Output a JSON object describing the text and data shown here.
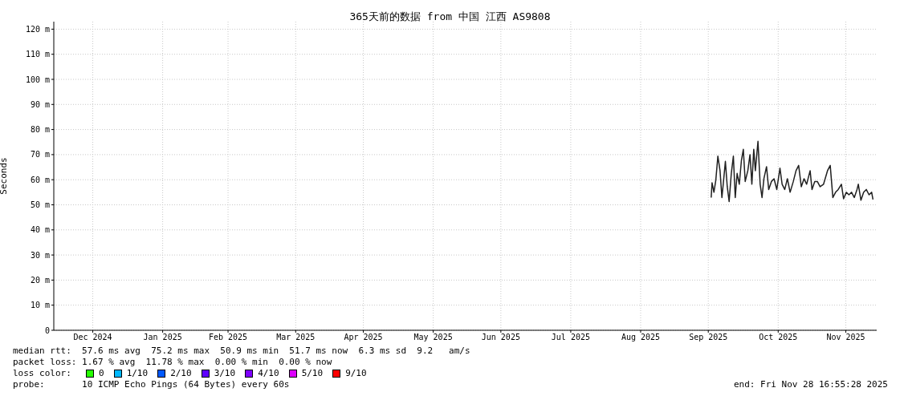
{
  "chart_data": {
    "type": "line",
    "title": "365天前的数据 from 中国 江西 AS9808",
    "ylabel": "Seconds",
    "legend_title": "loss color:",
    "legend": "bottom left",
    "grid": true,
    "xlim": [
      "2024-11-28T16:55",
      "2025-11-28T16:55"
    ],
    "xticks": [
      {
        "value": "2024-12-16",
        "label": "Dec 2024"
      },
      {
        "value": "2025-01-16",
        "label": "Jan 2025"
      },
      {
        "value": "2025-02-14",
        "label": "Feb 2025"
      },
      {
        "value": "2025-03-16",
        "label": "Mar 2025"
      },
      {
        "value": "2025-04-15",
        "label": "Apr 2025"
      },
      {
        "value": "2025-05-16",
        "label": "May 2025"
      },
      {
        "value": "2025-06-15",
        "label": "Jun 2025"
      },
      {
        "value": "2025-07-16",
        "label": "Jul 2025"
      },
      {
        "value": "2025-08-16",
        "label": "Aug 2025"
      },
      {
        "value": "2025-09-15",
        "label": "Sep 2025"
      },
      {
        "value": "2025-10-16",
        "label": "Oct 2025"
      },
      {
        "value": "2025-11-15",
        "label": "Nov 2025"
      }
    ],
    "ylim": [
      0,
      123
    ],
    "yticks": [
      0,
      {
        "value": 10,
        "label": "10 m"
      },
      {
        "value": 20,
        "label": "20 m"
      },
      {
        "value": 30,
        "label": "30 m"
      },
      {
        "value": 40,
        "label": "40 m"
      },
      {
        "value": 50,
        "label": "50 m"
      },
      {
        "value": 60,
        "label": "60 m"
      },
      {
        "value": 70,
        "label": "70 m"
      },
      {
        "value": 80,
        "label": "80 m"
      },
      {
        "value": 90,
        "label": "90 m"
      },
      {
        "value": 100,
        "label": "100 m"
      },
      {
        "value": 110,
        "label": "110 m"
      },
      {
        "value": 120,
        "label": "120 m"
      }
    ],
    "annotations": [
      "median rtt:  57.6 ms avg  75.2 ms max  50.9 ms min  51.7 ms now  6.3 ms sd  9.2   am/s",
      "packet loss: 1.67 % avg  11.78 % max  0.00 % min  0.00 % now",
      "probe:       10 ICMP Echo Pings (64 Bytes) every 60s",
      "end: Fri Nov 28 16:55:28 2025"
    ],
    "series": [
      {
        "color": "#202020",
        "x": [
          "2025-09-16T07:00",
          "2025-09-16T16:00",
          "2025-09-17T12:00",
          "2025-09-18T08:00",
          "2025-09-19T06:00",
          "2025-09-20T05:00",
          "2025-09-21T01:00",
          "2025-09-21T15:00",
          "2025-09-22T14:00",
          "2025-09-23T10:00",
          "2025-09-24T06:00",
          "2025-09-25T05:00",
          "2025-09-26T03:00",
          "2025-09-26T23:00",
          "2025-09-27T19:00",
          "2025-09-28T18:00",
          "2025-09-29T17:00",
          "2025-09-30T13:00",
          "2025-10-01T09:00",
          "2025-10-02T13:00",
          "2025-10-03T12:00",
          "2025-10-04T08:00",
          "2025-10-05T04:00",
          "2025-10-05T21:00",
          "2025-10-07T01:00",
          "2025-10-08T00:00",
          "2025-10-08T20:00",
          "2025-10-09T16:00",
          "2025-10-10T20:00",
          "2025-10-11T19:00",
          "2025-10-13T00:00",
          "2025-10-14T04:00",
          "2025-10-15T09:00",
          "2025-10-16T19:00",
          "2025-10-17T18:00",
          "2025-10-18T22:00",
          "2025-10-20T02:00",
          "2025-10-21T07:00",
          "2025-10-22T17:00",
          "2025-10-23T22:00",
          "2025-10-25T02:00",
          "2025-10-26T06:00",
          "2025-10-27T11:00",
          "2025-10-28T15:00",
          "2025-10-30T04:00",
          "2025-10-31T00:00",
          "2025-11-01T05:00",
          "2025-11-02T09:00",
          "2025-11-03T14:00",
          "2025-11-05T03:00",
          "2025-11-06T21:00",
          "2025-11-08T02:00",
          "2025-11-09T06:00",
          "2025-11-10T11:00",
          "2025-11-11T15:00",
          "2025-11-13T01:00",
          "2025-11-14T00:00",
          "2025-11-15T05:00",
          "2025-11-16T09:00",
          "2025-11-17T13:00",
          "2025-11-18T18:00",
          "2025-11-19T23:00",
          "2025-11-20T13:00",
          "2025-11-21T17:00",
          "2025-11-22T22:00",
          "2025-11-24T02:00",
          "2025-11-25T07:00",
          "2025-11-26T11:00",
          "2025-11-27T01:00"
        ],
        "values": [
          52.9,
          58.8,
          55.0,
          59.8,
          69.4,
          63.6,
          52.9,
          58.2,
          67.3,
          57.2,
          51.3,
          62.5,
          69.4,
          52.9,
          62.5,
          58.2,
          67.8,
          72.1,
          59.3,
          63.6,
          70.0,
          58.2,
          72.1,
          63.6,
          75.3,
          58.2,
          52.9,
          60.4,
          65.2,
          56.1,
          59.3,
          60.4,
          56.1,
          64.6,
          58.2,
          56.1,
          60.4,
          55.0,
          59.3,
          63.6,
          65.7,
          57.2,
          60.4,
          58.2,
          63.6,
          56.1,
          59.3,
          59.3,
          57.2,
          58.2,
          63.6,
          65.7,
          52.9,
          55.0,
          56.1,
          58.2,
          52.4,
          55.0,
          54.0,
          55.0,
          52.9,
          56.1,
          58.2,
          51.8,
          55.0,
          56.1,
          54.0,
          55.0,
          52.1
        ]
      },
      {
        "name": "0",
        "color": "#26ff00"
      },
      {
        "name": "1/10",
        "color": "#00b8ff"
      },
      {
        "name": "2/10",
        "color": "#0059ff"
      },
      {
        "name": "3/10",
        "color": "#5e00ff"
      },
      {
        "name": "4/10",
        "color": "#7e00ff"
      },
      {
        "name": "5/10",
        "color": "#dd00ff"
      },
      {
        "name": "9/10",
        "color": "#ff0000"
      }
    ]
  }
}
